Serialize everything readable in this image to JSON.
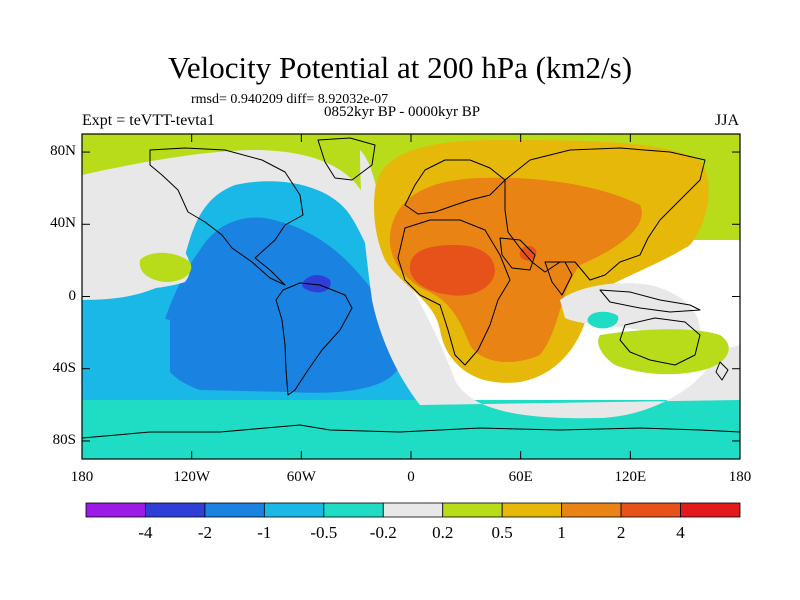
{
  "chart_data": {
    "type": "heatmap",
    "title": "Velocity Potential at 200 hPa (km2/s)",
    "stats_text": "rmsd= 0.940209 diff= 8.92032e-07",
    "period": "0852kyr BP - 0000kyr BP",
    "left_label": "Expt = teVTT-tevta1",
    "season": "JJA",
    "y_ticks": [
      {
        "value": 80,
        "label": "80N"
      },
      {
        "value": 40,
        "label": "40N"
      },
      {
        "value": 0,
        "label": "0"
      },
      {
        "value": -40,
        "label": "40S"
      },
      {
        "value": -80,
        "label": "80S"
      }
    ],
    "x_ticks": [
      {
        "value": -180,
        "label": "180"
      },
      {
        "value": -120,
        "label": "120W"
      },
      {
        "value": -60,
        "label": "60W"
      },
      {
        "value": 0,
        "label": "0"
      },
      {
        "value": 60,
        "label": "60E"
      },
      {
        "value": 120,
        "label": "120E"
      },
      {
        "value": 180,
        "label": "180"
      }
    ],
    "xlim": [
      -180,
      180
    ],
    "ylim": [
      -90,
      90
    ],
    "colorbar": {
      "levels": [
        "-4",
        "-2",
        "-1",
        "-0.5",
        "-0.2",
        "0.2",
        "0.5",
        "1",
        "2",
        "4"
      ],
      "colors": [
        "#9b1ae6",
        "#2e3ed6",
        "#1a82e0",
        "#1ab8e6",
        "#1fdcc4",
        "#e8e8e8",
        "#b8dc1a",
        "#e6b80a",
        "#e88314",
        "#e6521a",
        "#e21a1a"
      ]
    },
    "regions": [
      {
        "name": "high-latitude-north-band",
        "bin": 6
      },
      {
        "name": "pacific-north-neutral",
        "bin": 5
      },
      {
        "name": "americas-atlantic-negative",
        "bin": 3
      },
      {
        "name": "south-america-core-negative",
        "bin": 2
      },
      {
        "name": "amazon-minimum",
        "bin": 1
      },
      {
        "name": "south-pacific-negative",
        "bin": 3
      },
      {
        "name": "southern-ocean-negative",
        "bin": 4
      },
      {
        "name": "antarctic-band",
        "bin": 4
      },
      {
        "name": "atlantic-neutral-band",
        "bin": 5
      },
      {
        "name": "east-pacific-neutral",
        "bin": 5
      },
      {
        "name": "west-pacific-positive",
        "bin": 6
      },
      {
        "name": "eurasia-africa-positive",
        "bin": 7
      },
      {
        "name": "africa-asia-high",
        "bin": 8
      },
      {
        "name": "sahara-maximum",
        "bin": 9
      },
      {
        "name": "tibet-maximum",
        "bin": 9
      },
      {
        "name": "indian-ocean-neutral",
        "bin": 5
      },
      {
        "name": "australia-positive",
        "bin": 6
      },
      {
        "name": "indian-ocean-small-minimum",
        "bin": 4
      }
    ]
  }
}
